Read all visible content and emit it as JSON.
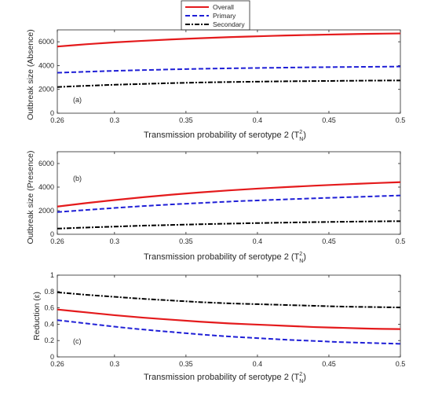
{
  "legend": {
    "entries": [
      {
        "label": "Overall",
        "color": "#e41a1c",
        "dash": "solid"
      },
      {
        "label": "Primary",
        "color": "#1f1fd6",
        "dash": "dashed"
      },
      {
        "label": "Secondary",
        "color": "#000000",
        "dash": "dashdot"
      }
    ]
  },
  "chart_data": [
    {
      "type": "line",
      "panel_label": "(a)",
      "xlabel": "Transmission probability of serotype 2 (T",
      "xlabel_sup": "2",
      "xlabel_sub": "N",
      "xlabel_end": ")",
      "ylabel": "Outbreak size (Absence)",
      "xlim": [
        0.26,
        0.5
      ],
      "ylim": [
        0,
        7000
      ],
      "xticks": [
        0.26,
        0.3,
        0.35,
        0.4,
        0.45,
        0.5
      ],
      "xtick_labels": [
        "0.26",
        "0.3",
        "0.35",
        "0.4",
        "0.45",
        "0.5"
      ],
      "yticks": [
        0,
        2000,
        4000,
        6000
      ],
      "ytick_labels": [
        "0",
        "2000",
        "4000",
        "6000"
      ],
      "x": [
        0.26,
        0.28,
        0.3,
        0.32,
        0.34,
        0.36,
        0.38,
        0.4,
        0.42,
        0.44,
        0.46,
        0.48,
        0.5
      ],
      "series": [
        {
          "name": "Overall",
          "values": [
            5600,
            5790,
            5950,
            6080,
            6200,
            6300,
            6390,
            6460,
            6530,
            6580,
            6630,
            6670,
            6700
          ]
        },
        {
          "name": "Primary",
          "values": [
            3400,
            3480,
            3560,
            3620,
            3680,
            3730,
            3770,
            3800,
            3830,
            3860,
            3880,
            3900,
            3920
          ]
        },
        {
          "name": "Secondary",
          "values": [
            2200,
            2300,
            2390,
            2460,
            2530,
            2580,
            2620,
            2650,
            2680,
            2700,
            2720,
            2740,
            2750
          ]
        }
      ]
    },
    {
      "type": "line",
      "panel_label": "(b)",
      "xlabel": "Transmission probability of serotype 2 (T",
      "xlabel_sup": "2",
      "xlabel_sub": "N",
      "xlabel_end": ")",
      "ylabel": "Outbreak size (Presence)",
      "xlim": [
        0.26,
        0.5
      ],
      "ylim": [
        0,
        7000
      ],
      "xticks": [
        0.26,
        0.3,
        0.35,
        0.4,
        0.45,
        0.5
      ],
      "xtick_labels": [
        "0.26",
        "0.3",
        "0.35",
        "0.4",
        "0.45",
        "0.5"
      ],
      "yticks": [
        0,
        2000,
        4000,
        6000
      ],
      "ytick_labels": [
        "0",
        "2000",
        "4000",
        "6000"
      ],
      "x": [
        0.26,
        0.28,
        0.3,
        0.32,
        0.34,
        0.36,
        0.38,
        0.4,
        0.42,
        0.44,
        0.46,
        0.48,
        0.5
      ],
      "series": [
        {
          "name": "Overall",
          "values": [
            2350,
            2640,
            2900,
            3140,
            3360,
            3550,
            3720,
            3870,
            4000,
            4120,
            4230,
            4330,
            4420
          ]
        },
        {
          "name": "Primary",
          "values": [
            1880,
            2060,
            2230,
            2390,
            2530,
            2650,
            2770,
            2870,
            2960,
            3050,
            3130,
            3210,
            3290
          ]
        },
        {
          "name": "Secondary",
          "values": [
            480,
            570,
            650,
            730,
            790,
            850,
            900,
            950,
            990,
            1030,
            1060,
            1090,
            1110
          ]
        }
      ]
    },
    {
      "type": "line",
      "panel_label": "(c)",
      "xlabel": "Transmission probability of serotype 2 (T",
      "xlabel_sup": "2",
      "xlabel_sub": "N",
      "xlabel_end": ")",
      "ylabel": "Reduction (ε)",
      "xlim": [
        0.26,
        0.5
      ],
      "ylim": [
        0,
        1
      ],
      "xticks": [
        0.26,
        0.3,
        0.35,
        0.4,
        0.45,
        0.5
      ],
      "xtick_labels": [
        "0.26",
        "0.3",
        "0.35",
        "0.4",
        "0.45",
        "0.5"
      ],
      "yticks": [
        0,
        0.2,
        0.4,
        0.6,
        0.8,
        1
      ],
      "ytick_labels": [
        "0",
        "0.2",
        "0.4",
        "0.6",
        "0.8",
        "1"
      ],
      "x": [
        0.26,
        0.28,
        0.3,
        0.32,
        0.34,
        0.36,
        0.38,
        0.4,
        0.42,
        0.44,
        0.46,
        0.48,
        0.5
      ],
      "series": [
        {
          "name": "Overall",
          "values": [
            0.58,
            0.545,
            0.51,
            0.48,
            0.455,
            0.43,
            0.41,
            0.395,
            0.38,
            0.365,
            0.355,
            0.345,
            0.34
          ]
        },
        {
          "name": "Primary",
          "values": [
            0.45,
            0.41,
            0.37,
            0.335,
            0.305,
            0.275,
            0.25,
            0.23,
            0.21,
            0.195,
            0.18,
            0.17,
            0.16
          ]
        },
        {
          "name": "Secondary",
          "values": [
            0.79,
            0.76,
            0.735,
            0.71,
            0.69,
            0.67,
            0.655,
            0.645,
            0.635,
            0.625,
            0.615,
            0.61,
            0.605
          ]
        }
      ]
    }
  ]
}
